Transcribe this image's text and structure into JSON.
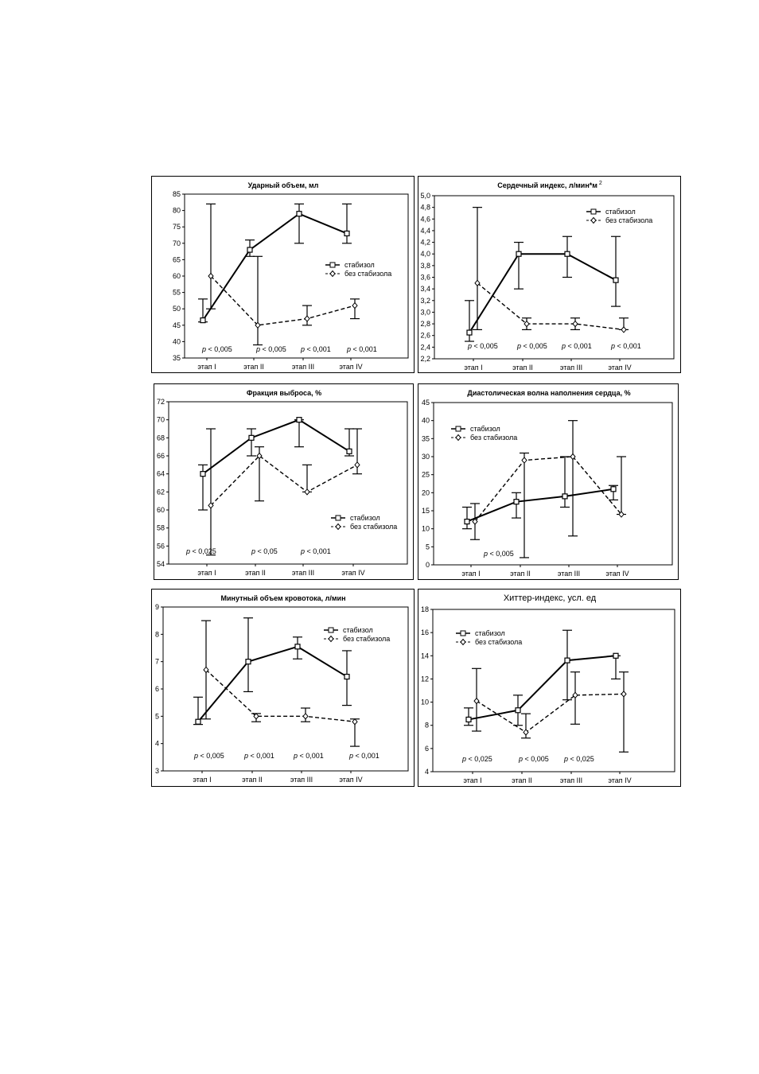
{
  "chart_data": [
    {
      "type": "line",
      "title": "Ударный объем, мл",
      "categories": [
        "этап I",
        "этап II",
        "этап III",
        "этап IV"
      ],
      "ylim": [
        35,
        85
      ],
      "yticks": [
        35,
        40,
        45,
        50,
        55,
        60,
        65,
        70,
        75,
        80,
        85
      ],
      "ytick_labels": [
        "35",
        "40",
        "45",
        "50",
        "55",
        "60",
        "65",
        "70",
        "75",
        "80",
        "85"
      ],
      "legend_position": "right-middle",
      "series": [
        {
          "name": "стабизол",
          "values": [
            46.5,
            68,
            79,
            73
          ],
          "err_low": [
            46,
            66,
            70,
            70
          ],
          "err_high": [
            53,
            71,
            82,
            82
          ]
        },
        {
          "name": "без стабизола",
          "values": [
            60,
            45,
            47,
            51
          ],
          "err_low": [
            50,
            39,
            45,
            47
          ],
          "err_high": [
            82,
            66,
            51,
            53
          ]
        }
      ],
      "annotations": [
        {
          "prefix": "p",
          "text": " < 0,005"
        },
        {
          "prefix": "p",
          "text": " < 0,005"
        },
        {
          "prefix": "p",
          "text": " < 0,001"
        },
        {
          "prefix": "p",
          "text": " < 0,001"
        }
      ]
    },
    {
      "type": "line",
      "title": "Сердечный индекс, л/мин*м",
      "title_sup": "2",
      "categories": [
        "этап I",
        "этап II",
        "этап III",
        "этап IV"
      ],
      "ylim": [
        2.2,
        5.0
      ],
      "yticks": [
        2.2,
        2.4,
        2.6,
        2.8,
        3.0,
        3.2,
        3.4,
        3.6,
        3.8,
        4.0,
        4.2,
        4.4,
        4.6,
        4.8,
        5.0
      ],
      "ytick_labels": [
        "2,2",
        "2,4",
        "2,6",
        "2,8",
        "3,0",
        "3,2",
        "3,4",
        "3,6",
        "3,8",
        "4,0",
        "4,2",
        "4,4",
        "4,6",
        "4,8",
        "5,0"
      ],
      "legend_position": "top-right",
      "series": [
        {
          "name": "стабизол",
          "values": [
            2.65,
            4.0,
            4.0,
            3.55
          ],
          "err_low": [
            2.5,
            3.4,
            3.6,
            3.1
          ],
          "err_high": [
            3.2,
            4.2,
            4.3,
            4.3
          ]
        },
        {
          "name": "без стабизола",
          "values": [
            3.5,
            2.8,
            2.8,
            2.7
          ],
          "err_low": [
            2.7,
            2.7,
            2.7,
            2.7
          ],
          "err_high": [
            4.8,
            2.9,
            2.9,
            2.9
          ]
        }
      ],
      "annotations": [
        {
          "prefix": "p",
          "text": " < 0,005"
        },
        {
          "prefix": "p",
          "text": " < 0,005"
        },
        {
          "prefix": "p",
          "text": " < 0,001"
        },
        {
          "prefix": "p",
          "text": " < 0,001"
        }
      ]
    },
    {
      "type": "line",
      "title": "Фракция выброса, %",
      "categories": [
        "этап I",
        "этап II",
        "этап III",
        "этап IV"
      ],
      "ylim": [
        54,
        72
      ],
      "yticks": [
        54,
        56,
        58,
        60,
        62,
        64,
        66,
        68,
        70,
        72
      ],
      "ytick_labels": [
        "54",
        "56",
        "58",
        "60",
        "62",
        "64",
        "66",
        "68",
        "70",
        "72"
      ],
      "legend_position": "bottom-right",
      "series": [
        {
          "name": "стабизол",
          "values": [
            64,
            68,
            70,
            66.5
          ],
          "err_low": [
            60,
            66,
            67,
            66
          ],
          "err_high": [
            65,
            69,
            70,
            69
          ]
        },
        {
          "name": "без стабизола",
          "values": [
            60.5,
            66,
            62,
            65
          ],
          "err_low": [
            55,
            61,
            62,
            64
          ],
          "err_high": [
            69,
            67,
            65,
            69
          ]
        }
      ],
      "annotations": [
        {
          "prefix": "p",
          "text": " < 0,025"
        },
        {
          "prefix": "p",
          "text": " < 0,05"
        },
        {
          "prefix": "p",
          "text": " < 0,001"
        }
      ]
    },
    {
      "type": "line",
      "title": "Диастолическая волна наполнения сердца, %",
      "categories": [
        "этап I",
        "этап II",
        "этап III",
        "этап IV"
      ],
      "ylim": [
        0,
        45
      ],
      "yticks": [
        0,
        5,
        10,
        15,
        20,
        25,
        30,
        35,
        40,
        45
      ],
      "ytick_labels": [
        "0",
        "5",
        "10",
        "15",
        "20",
        "25",
        "30",
        "35",
        "40",
        "45"
      ],
      "legend_position": "top-left",
      "series": [
        {
          "name": "стабизол",
          "values": [
            12,
            17.5,
            19,
            21
          ],
          "err_low": [
            10,
            13,
            16,
            18
          ],
          "err_high": [
            16,
            20,
            30,
            22
          ]
        },
        {
          "name": "без стабизола",
          "values": [
            12,
            29,
            30,
            14
          ],
          "err_low": [
            7,
            2,
            8,
            14
          ],
          "err_high": [
            17,
            31,
            40,
            30
          ]
        }
      ],
      "annotations": [
        {
          "prefix": "p",
          "text": " < 0,005"
        }
      ]
    },
    {
      "type": "line",
      "title": "Минутный объем кровотока, л/мин",
      "categories": [
        "этап I",
        "этап II",
        "этап III",
        "этап IV"
      ],
      "ylim": [
        3,
        9
      ],
      "yticks": [
        3,
        4,
        5,
        6,
        7,
        8,
        9
      ],
      "ytick_labels": [
        "3",
        "4",
        "5",
        "6",
        "7",
        "8",
        "9"
      ],
      "legend_position": "top-right",
      "series": [
        {
          "name": "стабизол",
          "values": [
            4.8,
            7.0,
            7.55,
            6.45
          ],
          "err_low": [
            4.7,
            5.9,
            7.1,
            5.4
          ],
          "err_high": [
            5.7,
            8.6,
            7.9,
            7.4
          ]
        },
        {
          "name": "без стабизола",
          "values": [
            6.7,
            5.0,
            5.0,
            4.8
          ],
          "err_low": [
            4.9,
            4.8,
            4.8,
            3.9
          ],
          "err_high": [
            8.5,
            5.1,
            5.3,
            4.9
          ]
        }
      ],
      "annotations": [
        {
          "prefix": "p",
          "text": " < 0,005"
        },
        {
          "prefix": "p",
          "text": " < 0,001"
        },
        {
          "prefix": "p",
          "text": " < 0,001"
        },
        {
          "prefix": "p",
          "text": " < 0,001"
        }
      ]
    },
    {
      "type": "line",
      "title": "Хиттер-индекс, усл. ед",
      "categories": [
        "этап I",
        "этап II",
        "этап III",
        "этап IV"
      ],
      "ylim": [
        4,
        18
      ],
      "yticks": [
        4,
        6,
        8,
        10,
        12,
        14,
        16,
        18
      ],
      "ytick_labels": [
        "4",
        "6",
        "8",
        "10",
        "12",
        "14",
        "16",
        "18"
      ],
      "legend_position": "top-left",
      "series": [
        {
          "name": "стабизол",
          "values": [
            8.5,
            9.3,
            13.6,
            14.0
          ],
          "err_low": [
            8.0,
            8.0,
            10.2,
            12.0
          ],
          "err_high": [
            9.5,
            10.6,
            16.2,
            14.0
          ]
        },
        {
          "name": "без стабизола",
          "values": [
            10.1,
            7.4,
            10.6,
            10.7
          ],
          "err_low": [
            7.5,
            6.9,
            8.1,
            5.7
          ],
          "err_high": [
            12.9,
            9.0,
            12.6,
            12.6
          ]
        }
      ],
      "annotations": [
        {
          "prefix": "p",
          "text": " < 0,025"
        },
        {
          "prefix": "p",
          "text": " < 0,005"
        },
        {
          "prefix": "p",
          "text": " < 0,025"
        }
      ]
    }
  ]
}
